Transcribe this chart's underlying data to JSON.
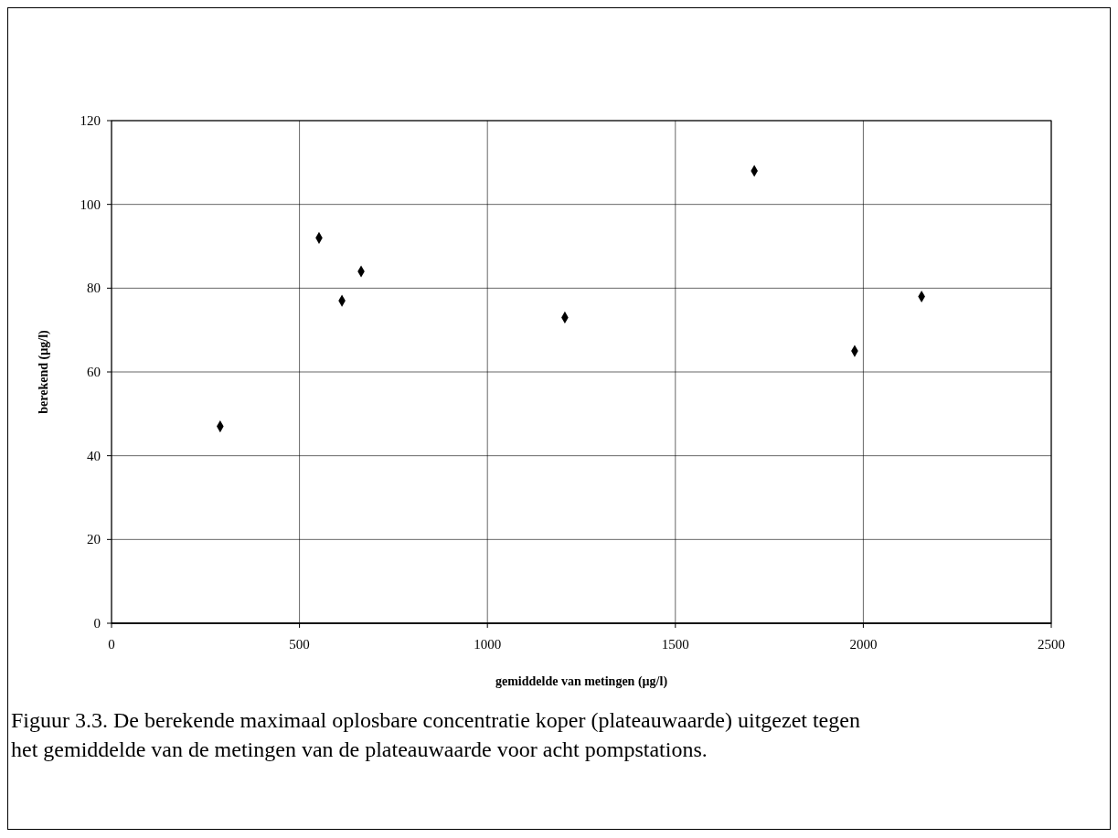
{
  "chart_data": {
    "type": "scatter",
    "xlabel": "gemiddelde van metingen (µg/l)",
    "ylabel": "berekend (µg/l)",
    "x": [
      289,
      552,
      613,
      664,
      1206,
      1710,
      1977,
      2155
    ],
    "series": [
      {
        "color": "#000000",
        "values": [
          47,
          92,
          77,
          84,
          73,
          108,
          65,
          78
        ]
      }
    ],
    "xlim": [
      0,
      2500
    ],
    "xticks": [
      0,
      500,
      1000,
      1500,
      2000,
      2500
    ],
    "ylim": [
      0,
      120
    ],
    "yticks": [
      0,
      20,
      40,
      60,
      80,
      100,
      120
    ],
    "grid": true,
    "marker": "diamond",
    "annotations": [
      "Figuur 3.3. De berekende maximaal oplosbare concentratie koper (plateauwaarde) uitgezet tegen het gemiddelde van de metingen van de plateauwaarde voor acht pompstations."
    ]
  }
}
